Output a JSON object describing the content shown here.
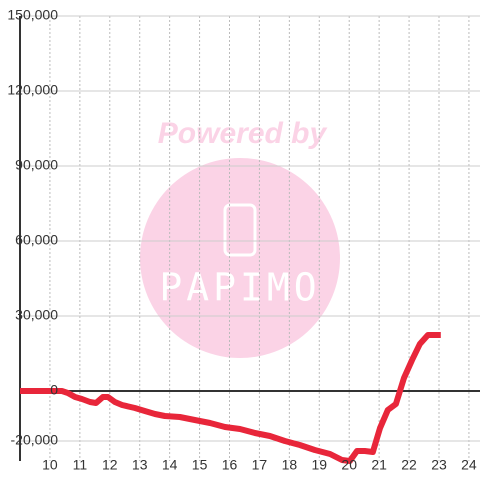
{
  "chart_data": {
    "type": "line",
    "watermark": {
      "top": "Powered by",
      "bottom": "PAPIMO"
    },
    "x": [
      9.0,
      10.4,
      10.6,
      10.84,
      11.07,
      11.34,
      11.54,
      11.77,
      11.94,
      12.17,
      12.41,
      12.84,
      13.17,
      13.51,
      13.84,
      14.34,
      14.84,
      15.35,
      15.85,
      16.35,
      16.85,
      17.35,
      17.85,
      18.35,
      18.85,
      19.36,
      19.76,
      20.02,
      20.26,
      20.52,
      20.79,
      21.03,
      21.29,
      21.56,
      21.83,
      22.1,
      22.36,
      22.63,
      23.06
    ],
    "series": [
      {
        "color": "#e8263a",
        "values": [
          0,
          0,
          -800,
          -2400,
          -3200,
          -4400,
          -4800,
          -2400,
          -2400,
          -4400,
          -5600,
          -6800,
          -8000,
          -9200,
          -10000,
          -10400,
          -11600,
          -12800,
          -14400,
          -15200,
          -16800,
          -18000,
          -20000,
          -21600,
          -23600,
          -25200,
          -27600,
          -28000,
          -24000,
          -24000,
          -24400,
          -14800,
          -7600,
          -5200,
          5200,
          12400,
          18800,
          22400,
          22400
        ]
      }
    ],
    "xlim": [
      9.0,
      24.37
    ],
    "xticks": [
      10,
      11,
      12,
      13,
      14,
      15,
      16,
      17,
      18,
      19,
      20,
      21,
      22,
      23,
      24
    ],
    "ylim": [
      -28000,
      150000
    ],
    "yticks": [
      {
        "value": -20000,
        "label": "-20,000"
      },
      0,
      {
        "value": 30000,
        "label": "30,000"
      },
      {
        "value": 60000,
        "label": "60,000"
      },
      {
        "value": 90000,
        "label": "90,000"
      },
      {
        "value": 120000,
        "label": "120,000"
      },
      {
        "value": 150000,
        "label": "150,000"
      }
    ],
    "grid": true
  }
}
